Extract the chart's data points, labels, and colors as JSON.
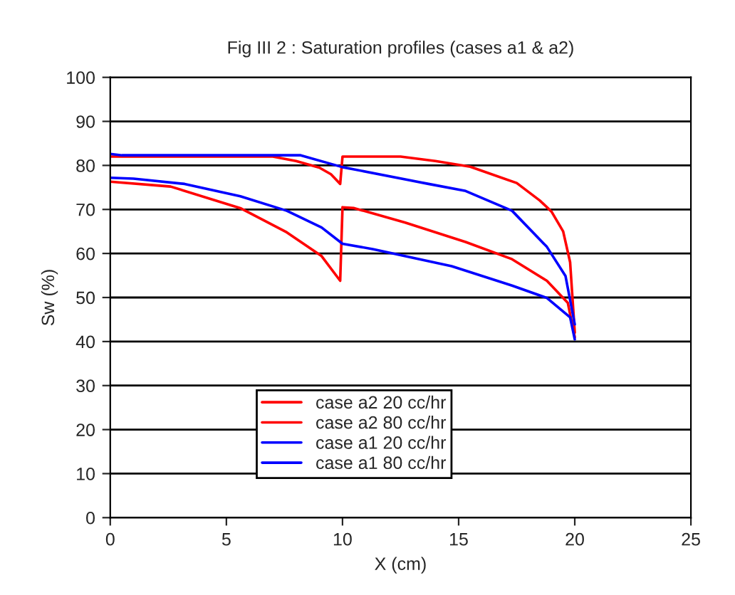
{
  "chart_data": {
    "type": "line",
    "title": "Fig III 2 : Saturation profiles (cases a1 & a2)",
    "xlabel": "X (cm)",
    "ylabel": "Sw (%)",
    "xlim": [
      0,
      25
    ],
    "xticks": [
      0,
      5,
      10,
      15,
      20,
      25
    ],
    "ylim": [
      0,
      100
    ],
    "yticks": [
      0,
      10,
      20,
      30,
      40,
      50,
      60,
      70,
      80,
      90,
      100
    ],
    "grid": "y",
    "legend": "bottom",
    "marker": "none",
    "line_style": "solid",
    "series": [
      {
        "name": "case a2 20 cc/hr",
        "color": "#ff0000",
        "x": [
          0,
          0.5,
          3,
          7,
          8,
          9,
          9.5,
          9.9,
          10,
          12.5,
          14,
          15.5,
          17.5,
          18.5,
          19,
          19.5,
          19.8,
          20
        ],
        "values": [
          82,
          82,
          82,
          82,
          81,
          79.5,
          78,
          75.8,
          82,
          82,
          81,
          79.7,
          76,
          72,
          69.5,
          65,
          58,
          42
        ]
      },
      {
        "name": "case a2 80 cc/hr",
        "color": "#ff0000",
        "x": [
          0,
          2.6,
          5.6,
          7.6,
          9.1,
          9.9,
          10,
          10.5,
          12.7,
          15.3,
          17.3,
          18.8,
          19.7,
          20
        ],
        "values": [
          76.3,
          75.2,
          70.3,
          64.8,
          59.4,
          53.8,
          70.5,
          70.3,
          67,
          62.6,
          58.7,
          53.8,
          48.8,
          41
        ]
      },
      {
        "name": "case a1 20 cc/hr",
        "color": "#0000ff",
        "x": [
          0,
          0.5,
          3,
          8.2,
          10,
          10.5,
          13.7,
          15.3,
          17.3,
          18.8,
          19.6,
          20
        ],
        "values": [
          82.6,
          82.3,
          82.3,
          82.3,
          79.6,
          79.1,
          75.8,
          74.2,
          69.7,
          61.5,
          54.9,
          43.9
        ]
      },
      {
        "name": "case a1 80 cc/hr",
        "color": "#0000ff",
        "x": [
          0,
          1,
          3.2,
          5.6,
          7.6,
          9.1,
          10,
          11.3,
          14.7,
          17.3,
          18.8,
          19.8,
          20
        ],
        "values": [
          77.2,
          77,
          75.8,
          73,
          69.7,
          65.9,
          62.2,
          61,
          57.1,
          52.7,
          49.9,
          45.5,
          40.5
        ]
      }
    ]
  }
}
